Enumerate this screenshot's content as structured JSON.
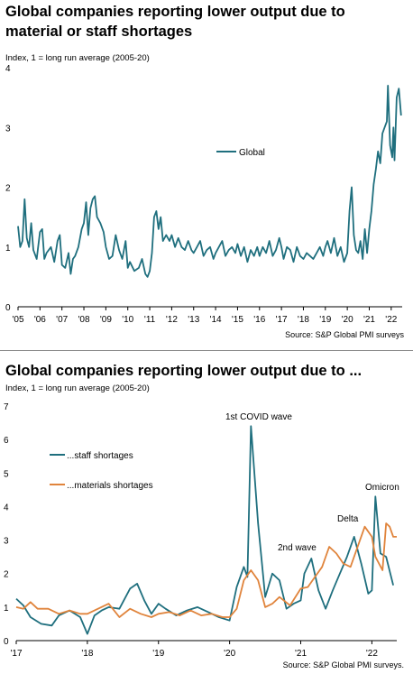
{
  "chart1": {
    "title_line1": "Global companies reporting lower output due to",
    "title_line2": "material or staff shortages",
    "subtitle": "Index, 1 = long run average (2005-20)",
    "source": "Source: S&P Global PMI surveys",
    "legend": "Global"
  },
  "chart2": {
    "title": "Global companies reporting lower output due to ...",
    "subtitle": "Index, 1 = long run average (2005-20)",
    "source": "Source: S&P Global PMI surveys.",
    "legend_staff": "...staff shortages",
    "legend_materials": "...materials shortages",
    "annotations": [
      "1st COVID wave",
      "2nd wave",
      "Delta",
      "Omicron"
    ]
  },
  "chart_data": [
    {
      "type": "line",
      "x_ticks": [
        "'05",
        "'06",
        "'07",
        "'08",
        "'09",
        "'10",
        "'11",
        "'12",
        "'13",
        "'14",
        "'15",
        "'16",
        "'17",
        "'18",
        "'19",
        "'20",
        "'21",
        "'22"
      ],
      "y_ticks": [
        0,
        1,
        2,
        3,
        4
      ],
      "ylim": [
        0,
        4
      ],
      "xlim": [
        2005.0,
        2022.5
      ],
      "colors": {
        "global": "#1f6f7e"
      },
      "series": [
        {
          "name": "Global",
          "points": [
            [
              2005.0,
              1.35
            ],
            [
              2005.1,
              1.0
            ],
            [
              2005.2,
              1.1
            ],
            [
              2005.3,
              1.8
            ],
            [
              2005.4,
              1.15
            ],
            [
              2005.5,
              1.0
            ],
            [
              2005.6,
              1.4
            ],
            [
              2005.7,
              0.95
            ],
            [
              2005.85,
              0.8
            ],
            [
              2006.0,
              1.25
            ],
            [
              2006.1,
              1.3
            ],
            [
              2006.2,
              0.8
            ],
            [
              2006.3,
              0.9
            ],
            [
              2006.5,
              1.0
            ],
            [
              2006.65,
              0.75
            ],
            [
              2006.8,
              1.1
            ],
            [
              2006.9,
              1.2
            ],
            [
              2007.0,
              0.7
            ],
            [
              2007.15,
              0.65
            ],
            [
              2007.3,
              0.9
            ],
            [
              2007.4,
              0.55
            ],
            [
              2007.5,
              0.8
            ],
            [
              2007.6,
              0.85
            ],
            [
              2007.75,
              1.0
            ],
            [
              2007.9,
              1.3
            ],
            [
              2008.0,
              1.4
            ],
            [
              2008.1,
              1.75
            ],
            [
              2008.2,
              1.2
            ],
            [
              2008.3,
              1.65
            ],
            [
              2008.4,
              1.8
            ],
            [
              2008.5,
              1.85
            ],
            [
              2008.6,
              1.5
            ],
            [
              2008.75,
              1.4
            ],
            [
              2008.9,
              1.25
            ],
            [
              2009.0,
              1.0
            ],
            [
              2009.15,
              0.8
            ],
            [
              2009.3,
              0.85
            ],
            [
              2009.45,
              1.2
            ],
            [
              2009.6,
              0.95
            ],
            [
              2009.75,
              0.8
            ],
            [
              2009.9,
              1.1
            ],
            [
              2010.0,
              0.65
            ],
            [
              2010.1,
              0.75
            ],
            [
              2010.3,
              0.6
            ],
            [
              2010.5,
              0.65
            ],
            [
              2010.65,
              0.8
            ],
            [
              2010.8,
              0.55
            ],
            [
              2010.9,
              0.5
            ],
            [
              2011.0,
              0.6
            ],
            [
              2011.1,
              0.9
            ],
            [
              2011.2,
              1.5
            ],
            [
              2011.3,
              1.6
            ],
            [
              2011.4,
              1.3
            ],
            [
              2011.5,
              1.5
            ],
            [
              2011.6,
              1.1
            ],
            [
              2011.75,
              1.2
            ],
            [
              2011.9,
              1.1
            ],
            [
              2012.0,
              1.2
            ],
            [
              2012.15,
              1.0
            ],
            [
              2012.3,
              1.15
            ],
            [
              2012.45,
              1.0
            ],
            [
              2012.6,
              0.95
            ],
            [
              2012.75,
              1.1
            ],
            [
              2012.9,
              0.95
            ],
            [
              2013.0,
              0.9
            ],
            [
              2013.15,
              1.0
            ],
            [
              2013.3,
              1.1
            ],
            [
              2013.45,
              0.85
            ],
            [
              2013.6,
              0.95
            ],
            [
              2013.75,
              1.0
            ],
            [
              2013.9,
              0.8
            ],
            [
              2014.0,
              0.9
            ],
            [
              2014.15,
              1.0
            ],
            [
              2014.3,
              1.1
            ],
            [
              2014.45,
              0.85
            ],
            [
              2014.6,
              0.95
            ],
            [
              2014.75,
              1.0
            ],
            [
              2014.9,
              0.9
            ],
            [
              2015.0,
              1.05
            ],
            [
              2015.15,
              0.85
            ],
            [
              2015.3,
              1.0
            ],
            [
              2015.45,
              0.75
            ],
            [
              2015.6,
              0.95
            ],
            [
              2015.75,
              0.85
            ],
            [
              2015.9,
              1.0
            ],
            [
              2016.0,
              0.85
            ],
            [
              2016.15,
              1.0
            ],
            [
              2016.3,
              0.9
            ],
            [
              2016.45,
              1.1
            ],
            [
              2016.6,
              0.85
            ],
            [
              2016.75,
              0.95
            ],
            [
              2016.9,
              1.15
            ],
            [
              2017.0,
              1.0
            ],
            [
              2017.1,
              0.8
            ],
            [
              2017.25,
              1.0
            ],
            [
              2017.4,
              0.95
            ],
            [
              2017.55,
              0.75
            ],
            [
              2017.7,
              1.0
            ],
            [
              2017.85,
              0.85
            ],
            [
              2018.0,
              0.8
            ],
            [
              2018.15,
              0.9
            ],
            [
              2018.3,
              0.85
            ],
            [
              2018.45,
              0.8
            ],
            [
              2018.6,
              0.9
            ],
            [
              2018.75,
              1.0
            ],
            [
              2018.9,
              0.85
            ],
            [
              2019.0,
              1.0
            ],
            [
              2019.1,
              1.1
            ],
            [
              2019.25,
              0.9
            ],
            [
              2019.4,
              1.15
            ],
            [
              2019.55,
              0.85
            ],
            [
              2019.7,
              1.0
            ],
            [
              2019.85,
              0.75
            ],
            [
              2020.0,
              0.9
            ],
            [
              2020.1,
              1.6
            ],
            [
              2020.2,
              2.0
            ],
            [
              2020.3,
              1.2
            ],
            [
              2020.4,
              0.95
            ],
            [
              2020.5,
              0.9
            ],
            [
              2020.6,
              1.1
            ],
            [
              2020.7,
              0.8
            ],
            [
              2020.8,
              1.3
            ],
            [
              2020.9,
              0.9
            ],
            [
              2021.0,
              1.3
            ],
            [
              2021.1,
              1.6
            ],
            [
              2021.2,
              2.05
            ],
            [
              2021.3,
              2.3
            ],
            [
              2021.4,
              2.6
            ],
            [
              2021.5,
              2.4
            ],
            [
              2021.6,
              2.9
            ],
            [
              2021.7,
              3.0
            ],
            [
              2021.8,
              3.1
            ],
            [
              2021.85,
              3.7
            ],
            [
              2021.95,
              2.7
            ],
            [
              2022.05,
              2.5
            ],
            [
              2022.1,
              3.0
            ],
            [
              2022.15,
              2.45
            ],
            [
              2022.25,
              3.5
            ],
            [
              2022.35,
              3.65
            ],
            [
              2022.45,
              3.2
            ]
          ]
        }
      ]
    },
    {
      "type": "line",
      "x_ticks": [
        "'17",
        "'18",
        "'19",
        "'20",
        "'21",
        "'22"
      ],
      "y_ticks": [
        0,
        1,
        2,
        3,
        4,
        5,
        6,
        7
      ],
      "ylim": [
        0,
        7
      ],
      "xlim": [
        2017.0,
        2022.35
      ],
      "colors": {
        "staff": "#1f6f7e",
        "materials": "#e0843c"
      },
      "series": [
        {
          "name": "...staff shortages",
          "points": [
            [
              2017.0,
              1.25
            ],
            [
              2017.1,
              1.05
            ],
            [
              2017.2,
              0.7
            ],
            [
              2017.35,
              0.5
            ],
            [
              2017.5,
              0.45
            ],
            [
              2017.6,
              0.75
            ],
            [
              2017.75,
              0.9
            ],
            [
              2017.9,
              0.7
            ],
            [
              2018.0,
              0.2
            ],
            [
              2018.1,
              0.75
            ],
            [
              2018.2,
              0.9
            ],
            [
              2018.3,
              1.0
            ],
            [
              2018.45,
              0.95
            ],
            [
              2018.6,
              1.55
            ],
            [
              2018.7,
              1.7
            ],
            [
              2018.8,
              1.2
            ],
            [
              2018.9,
              0.8
            ],
            [
              2019.0,
              1.1
            ],
            [
              2019.1,
              0.95
            ],
            [
              2019.25,
              0.75
            ],
            [
              2019.4,
              0.9
            ],
            [
              2019.55,
              1.0
            ],
            [
              2019.7,
              0.85
            ],
            [
              2019.85,
              0.7
            ],
            [
              2020.0,
              0.6
            ],
            [
              2020.1,
              1.6
            ],
            [
              2020.2,
              2.2
            ],
            [
              2020.25,
              1.9
            ],
            [
              2020.3,
              6.4
            ],
            [
              2020.4,
              3.5
            ],
            [
              2020.5,
              1.3
            ],
            [
              2020.6,
              2.0
            ],
            [
              2020.7,
              1.8
            ],
            [
              2020.8,
              0.95
            ],
            [
              2020.9,
              1.1
            ],
            [
              2021.0,
              1.2
            ],
            [
              2021.05,
              2.0
            ],
            [
              2021.15,
              2.45
            ],
            [
              2021.25,
              1.5
            ],
            [
              2021.35,
              0.95
            ],
            [
              2021.45,
              1.5
            ],
            [
              2021.55,
              2.0
            ],
            [
              2021.65,
              2.5
            ],
            [
              2021.75,
              3.1
            ],
            [
              2021.85,
              2.3
            ],
            [
              2021.95,
              1.4
            ],
            [
              2022.0,
              1.5
            ],
            [
              2022.05,
              4.3
            ],
            [
              2022.12,
              2.6
            ],
            [
              2022.2,
              2.5
            ],
            [
              2022.3,
              1.65
            ]
          ]
        },
        {
          "name": "...materials shortages",
          "points": [
            [
              2017.0,
              1.0
            ],
            [
              2017.1,
              0.95
            ],
            [
              2017.2,
              1.15
            ],
            [
              2017.3,
              0.95
            ],
            [
              2017.45,
              0.95
            ],
            [
              2017.6,
              0.8
            ],
            [
              2017.75,
              0.9
            ],
            [
              2017.9,
              0.8
            ],
            [
              2018.0,
              0.8
            ],
            [
              2018.15,
              0.95
            ],
            [
              2018.3,
              1.1
            ],
            [
              2018.45,
              0.7
            ],
            [
              2018.6,
              0.95
            ],
            [
              2018.75,
              0.8
            ],
            [
              2018.9,
              0.7
            ],
            [
              2019.0,
              0.8
            ],
            [
              2019.15,
              0.85
            ],
            [
              2019.3,
              0.75
            ],
            [
              2019.45,
              0.9
            ],
            [
              2019.6,
              0.75
            ],
            [
              2019.75,
              0.8
            ],
            [
              2019.9,
              0.7
            ],
            [
              2020.0,
              0.7
            ],
            [
              2020.1,
              0.95
            ],
            [
              2020.2,
              1.8
            ],
            [
              2020.3,
              2.1
            ],
            [
              2020.4,
              1.8
            ],
            [
              2020.5,
              1.0
            ],
            [
              2020.6,
              1.1
            ],
            [
              2020.7,
              1.3
            ],
            [
              2020.85,
              1.05
            ],
            [
              2021.0,
              1.55
            ],
            [
              2021.1,
              1.6
            ],
            [
              2021.2,
              1.9
            ],
            [
              2021.3,
              2.2
            ],
            [
              2021.4,
              2.8
            ],
            [
              2021.5,
              2.6
            ],
            [
              2021.6,
              2.3
            ],
            [
              2021.7,
              2.2
            ],
            [
              2021.8,
              2.8
            ],
            [
              2021.9,
              3.4
            ],
            [
              2022.0,
              3.1
            ],
            [
              2022.05,
              2.5
            ],
            [
              2022.15,
              2.1
            ],
            [
              2022.2,
              3.5
            ],
            [
              2022.25,
              3.4
            ],
            [
              2022.3,
              3.1
            ],
            [
              2022.35,
              3.1
            ]
          ]
        }
      ]
    }
  ]
}
